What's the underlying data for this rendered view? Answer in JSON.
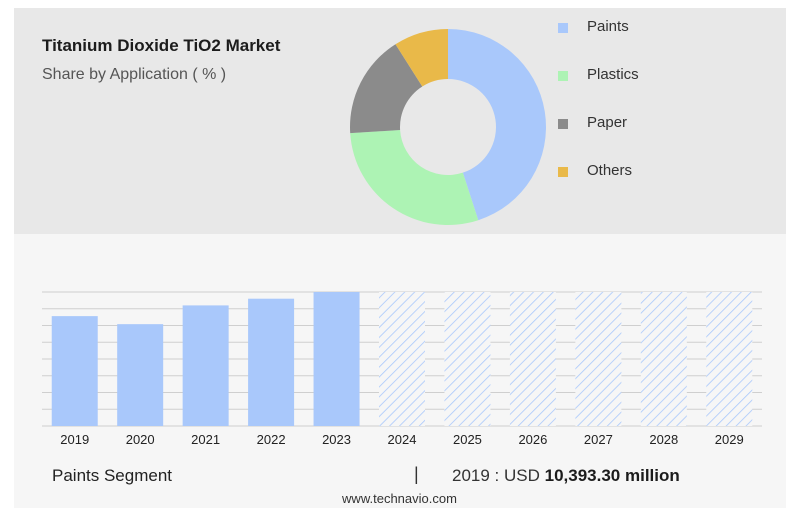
{
  "header": {
    "title": "Titanium Dioxide TiO2 Market",
    "subtitle": "Share by Application ( % )"
  },
  "chart_data": [
    {
      "type": "pie",
      "subtype": "donut",
      "labels": [
        "Paints",
        "Plastics",
        "Paper",
        "Others"
      ],
      "values": [
        45,
        29,
        17,
        9
      ],
      "colors": [
        "#a9c8fb",
        "#adf3b4",
        "#8b8b8b",
        "#e9b949"
      ],
      "legend_position": "right"
    },
    {
      "type": "bar",
      "categories": [
        "2019",
        "2020",
        "2021",
        "2022",
        "2023",
        "2024",
        "2025",
        "2026",
        "2027",
        "2028",
        "2029"
      ],
      "values": [
        82,
        76,
        90,
        95,
        100,
        null,
        null,
        null,
        null,
        null,
        null
      ],
      "forecast_categories": [
        "2024",
        "2025",
        "2026",
        "2027",
        "2028",
        "2029"
      ],
      "ylim": [
        0,
        100
      ],
      "grid": true,
      "bar_color": "#a9c8fb",
      "forecast_style": "hatched"
    }
  ],
  "footer": {
    "segment_label": "Paints Segment",
    "separator": "|",
    "value_prefix": "2019 : USD",
    "value_bold": "10,393.30 million"
  },
  "source": "www.technavio.com"
}
